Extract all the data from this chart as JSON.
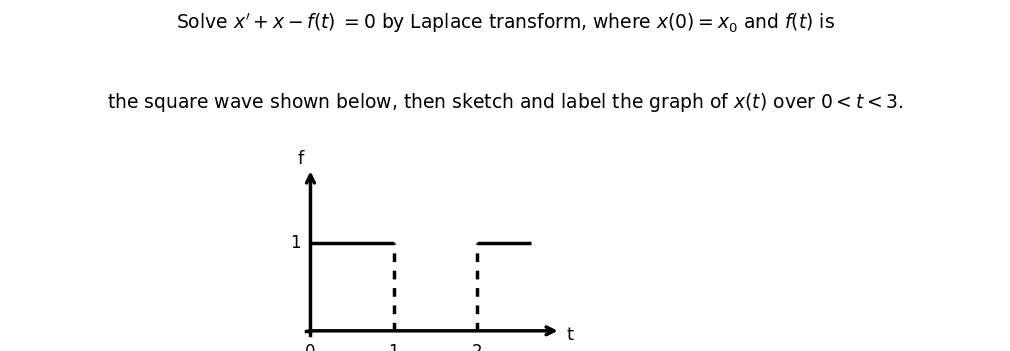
{
  "title_line1": "Solve $x^{\\prime} + x - f(t)\\; = 0$ by Laplace transform, where $x(0) = x_0$ and $f(t)$ is",
  "title_line2": "the square wave shown below, then sketch and label the graph of $x(t)$ over $0 < t < 3$.",
  "background_color": "#ffffff",
  "text_color": "#000000",
  "font_size_title": 13.5,
  "graph_xlabel": "t",
  "graph_ylabel": "f",
  "axis_xlim": [
    -0.15,
    3.0
  ],
  "axis_ylim": [
    -0.15,
    1.85
  ]
}
